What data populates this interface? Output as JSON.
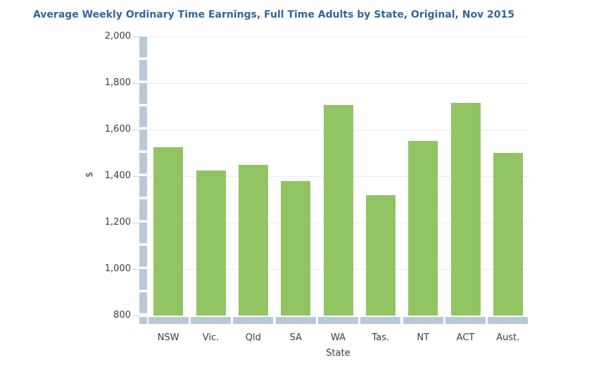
{
  "chart_data": {
    "type": "bar",
    "title": "Average Weekly Ordinary Time Earnings, Full Time Adults by State, Original, Nov 2015",
    "categories": [
      "NSW",
      "Vic.",
      "Qld",
      "SA",
      "WA",
      "Tas.",
      "NT",
      "ACT",
      "Aust."
    ],
    "values": [
      1525,
      1424,
      1447,
      1378,
      1705,
      1319,
      1551,
      1715,
      1500
    ],
    "xlabel": "State",
    "ylabel": "$",
    "ylim": [
      800,
      2000
    ],
    "ytick_step": 200,
    "ytick_labels": [
      "800",
      "1,000",
      "1,200",
      "1,400",
      "1,600",
      "1,800",
      "2,000"
    ],
    "grid": true,
    "legend": false
  },
  "colors": {
    "bar": "#92c464",
    "axis_bar": "#b9c8d7",
    "title": "#336699",
    "tick_text": "#3d3d3d",
    "gridline": "#ededed"
  }
}
